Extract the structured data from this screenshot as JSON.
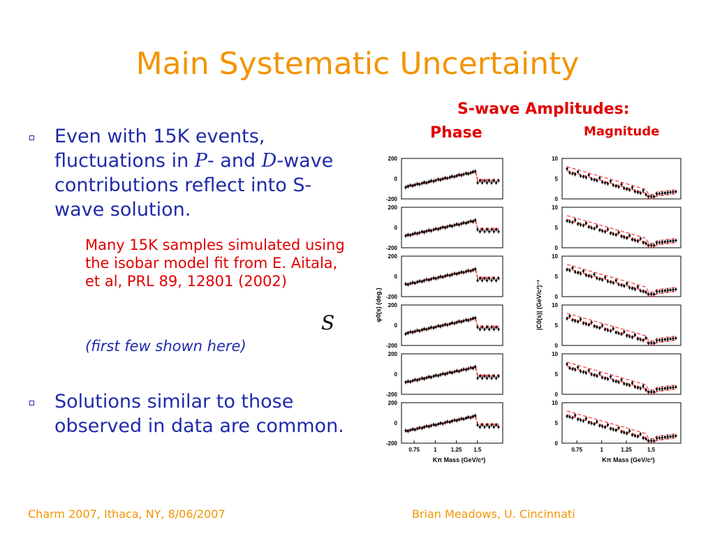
{
  "title": "Main Systematic Uncertainty",
  "bullet1": {
    "pre": "Even with 15K events, fluctuations in ",
    "p": "P",
    "mid": "- and ",
    "d": "D",
    "post": "-wave contributions reflect into S-wave solution."
  },
  "subnote": "Many 15K samples simulated using the isobar model fit from E. Aitala, et al, PRL 89, 12801 (2002)",
  "subnote2": "(first few shown here)",
  "bullet2": "Solutions similar to those observed in data are common.",
  "stray_s": "S",
  "headings": {
    "swave": "S-wave Amplitudes:",
    "phase": "Phase",
    "magnitude": "Magnitude"
  },
  "footer": {
    "left": "Charm 2007, Ithaca, NY, 8/06/2007",
    "right": "Brian Meadows, U. Cincinnati"
  },
  "colors": {
    "title": "#f29400",
    "body_text": "#1f2aa8",
    "highlight": "#e00000",
    "fit_curve": "#ff3333"
  },
  "chart_data": [
    {
      "type": "scatter",
      "panel_group": "phase",
      "xlabel": "Kπ Mass (GeV/c²)",
      "ylabel": "φ0(s) (deg.)",
      "xticks": [
        "0.75",
        "1",
        "1.25",
        "1.5"
      ],
      "yticks": [
        "-200",
        "0",
        "200"
      ],
      "xlim": [
        0.6,
        1.8
      ],
      "ylim": [
        -200,
        200
      ],
      "panels": 6
    },
    {
      "type": "scatter",
      "panel_group": "magnitude",
      "xlabel": "Kπ Mass (GeV/c²)",
      "ylabel": "|C0(s)| (GeV/c²)⁻²",
      "xticks": [
        "0.75",
        "1",
        "1.25",
        "1.5"
      ],
      "yticks": [
        "0",
        "5",
        "10"
      ],
      "xlim": [
        0.6,
        1.8
      ],
      "ylim": [
        0,
        10
      ],
      "panels": 6
    }
  ]
}
